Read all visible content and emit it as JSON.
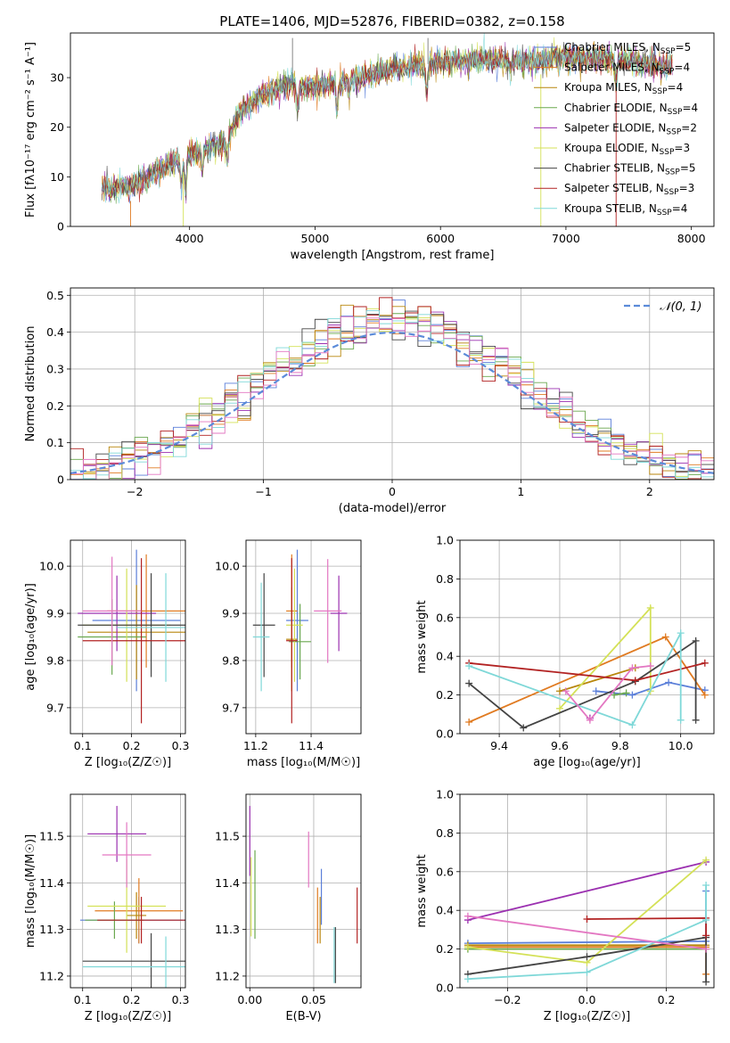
{
  "title": "PLATE=1406, MJD=52876, FIBERID=0382, z=0.158",
  "colors": {
    "Chabrier MILES": "#5b7fd9",
    "Salpeter MILES": "#e07b22",
    "Kroupa MILES": "#b8860b",
    "Chabrier ELODIE": "#6aa84f",
    "Salpeter ELODIE": "#9b30b0",
    "Kroupa ELODIE": "#d4e157",
    "Chabrier STELIB": "#444444",
    "Salpeter STELIB": "#b22222",
    "Kroupa STELIB": "#7fd8d8",
    "pink": "#e377c2",
    "normal": "#5b8bd9"
  },
  "chart_data": [
    {
      "id": "spectrum",
      "type": "line",
      "xlabel": "wavelength [Angstrom, rest frame]",
      "ylabel": "Flux [fλ10⁻¹⁷ erg cm⁻² s⁻¹ A⁻¹]",
      "xlim": [
        3050,
        8180
      ],
      "ylim": [
        0,
        39
      ],
      "xticks": [
        4000,
        5000,
        6000,
        7000,
        8000
      ],
      "yticks": [
        0,
        10,
        20,
        30
      ],
      "legend_position": "right",
      "legend": [
        {
          "label": "Chabrier MILES, N",
          "sub": "SSP",
          "suffix": "=5",
          "color_key": "Chabrier MILES"
        },
        {
          "label": "Salpeter MILES, N",
          "sub": "SSP",
          "suffix": "=4",
          "color_key": "Salpeter MILES"
        },
        {
          "label": "Kroupa MILES, N",
          "sub": "SSP",
          "suffix": "=4",
          "color_key": "Kroupa MILES"
        },
        {
          "label": "Chabrier ELODIE, N",
          "sub": "SSP",
          "suffix": "=4",
          "color_key": "Chabrier ELODIE"
        },
        {
          "label": "Salpeter ELODIE, N",
          "sub": "SSP",
          "suffix": "=2",
          "color_key": "Salpeter ELODIE"
        },
        {
          "label": "Kroupa ELODIE, N",
          "sub": "SSP",
          "suffix": "=3",
          "color_key": "Kroupa ELODIE"
        },
        {
          "label": "Chabrier STELIB, N",
          "sub": "SSP",
          "suffix": "=5",
          "color_key": "Chabrier STELIB"
        },
        {
          "label": "Salpeter STELIB, N",
          "sub": "SSP",
          "suffix": "=3",
          "color_key": "Salpeter STELIB"
        },
        {
          "label": "Kroupa STELIB, N",
          "sub": "SSP",
          "suffix": "=4",
          "color_key": "Kroupa STELIB"
        }
      ],
      "continuum": [
        [
          3300,
          7.5
        ],
        [
          3500,
          7.8
        ],
        [
          3650,
          9.5
        ],
        [
          3800,
          12
        ],
        [
          3950,
          14
        ],
        [
          4050,
          15
        ],
        [
          4200,
          16
        ],
        [
          4300,
          17.5
        ],
        [
          4400,
          23
        ],
        [
          4600,
          27
        ],
        [
          4800,
          28.5
        ],
        [
          5000,
          28.5
        ],
        [
          5200,
          29
        ],
        [
          5500,
          31
        ],
        [
          5800,
          32.5
        ],
        [
          6000,
          33
        ],
        [
          6300,
          33.5
        ],
        [
          6700,
          33.5
        ],
        [
          7000,
          34
        ],
        [
          7300,
          34
        ],
        [
          7600,
          33
        ],
        [
          7800,
          32
        ]
      ],
      "absorption_features": [
        [
          3934,
          -6
        ],
        [
          3968,
          -7
        ],
        [
          4102,
          -4
        ],
        [
          4300,
          -4
        ],
        [
          4861,
          -5
        ],
        [
          5175,
          -6
        ],
        [
          5270,
          -3
        ],
        [
          5890,
          -6
        ],
        [
          6563,
          -2
        ],
        [
          7400,
          -4
        ]
      ],
      "spike_lines": [
        [
          4820,
          38
        ],
        [
          5900,
          38
        ]
      ]
    },
    {
      "id": "residuals",
      "type": "histogram",
      "xlabel": "(data-model)/error",
      "ylabel": "Normed distribution",
      "xlim": [
        -2.5,
        2.5
      ],
      "ylim": [
        0,
        0.52
      ],
      "xticks": [
        -2,
        -1,
        0,
        1,
        2
      ],
      "yticks": [
        0,
        0.1,
        0.2,
        0.3,
        0.4,
        0.5
      ],
      "grid": true,
      "legend_position": "top-right",
      "normal_label": "𝒩(0, 1)",
      "bin_width": 0.1
    },
    {
      "id": "age-vs-Z",
      "type": "scatter",
      "xlabel": "Z [log₁₀(Z/Z☉)]",
      "ylabel": "age  [log₁₀(age/yr)]",
      "xlim": [
        0.075,
        0.31
      ],
      "ylim": [
        9.645,
        10.055
      ],
      "xticks": [
        0.1,
        0.2,
        0.3
      ],
      "yticks": [
        9.7,
        9.8,
        9.9,
        10.0
      ],
      "grid": true,
      "points": [
        {
          "series": "Chabrier MILES",
          "x": 0.21,
          "y": 9.885,
          "xerr": 0.09,
          "yerr": 0.15
        },
        {
          "series": "Salpeter MILES",
          "x": 0.23,
          "y": 9.905,
          "xerr": 0.08,
          "yerr": 0.12
        },
        {
          "series": "Kroupa MILES",
          "x": 0.21,
          "y": 9.86,
          "xerr": 0.1,
          "yerr": 0.1
        },
        {
          "series": "Chabrier ELODIE",
          "x": 0.16,
          "y": 9.85,
          "xerr": 0.07,
          "yerr": 0.08
        },
        {
          "series": "Salpeter ELODIE",
          "x": 0.17,
          "y": 9.9,
          "xerr": 0.08,
          "yerr": 0.08
        },
        {
          "series": "Kroupa ELODIE",
          "x": 0.19,
          "y": 9.875,
          "xerr": 0.09,
          "yerr": 0.12
        },
        {
          "series": "Chabrier STELIB",
          "x": 0.24,
          "y": 9.875,
          "xerr": 0.15,
          "yerr": 0.11
        },
        {
          "series": "Salpeter STELIB",
          "x": 0.22,
          "y": 9.842,
          "xerr": 0.12,
          "yerr": 0.175
        },
        {
          "series": "Kroupa STELIB",
          "x": 0.27,
          "y": 9.87,
          "xerr": 0.1,
          "yerr": 0.115
        },
        {
          "series": "pink",
          "x": 0.16,
          "y": 9.905,
          "xerr": 0.06,
          "yerr": 0.115
        }
      ]
    },
    {
      "id": "age-vs-mass",
      "type": "scatter",
      "xlabel": "mass [log₁₀(M/M☉)]",
      "ylabel": "",
      "xlim": [
        11.165,
        11.58
      ],
      "ylim": [
        9.645,
        10.055
      ],
      "xticks": [
        11.2,
        11.4
      ],
      "yticks": [
        9.7,
        9.8,
        9.9,
        10.0
      ],
      "grid": true,
      "points": [
        {
          "series": "Chabrier MILES",
          "x": 11.35,
          "y": 9.885,
          "xerr": 0.04,
          "yerr": 0.15
        },
        {
          "series": "Salpeter MILES",
          "x": 11.33,
          "y": 9.905,
          "xerr": 0.02,
          "yerr": 0.12
        },
        {
          "series": "Kroupa MILES",
          "x": 11.33,
          "y": 9.845,
          "xerr": 0.02,
          "yerr": 0.11
        },
        {
          "series": "Chabrier ELODIE",
          "x": 11.36,
          "y": 9.84,
          "xerr": 0.04,
          "yerr": 0.08
        },
        {
          "series": "Salpeter ELODIE",
          "x": 11.5,
          "y": 9.9,
          "xerr": 0.03,
          "yerr": 0.08
        },
        {
          "series": "Kroupa ELODIE",
          "x": 11.34,
          "y": 9.875,
          "xerr": 0.03,
          "yerr": 0.12
        },
        {
          "series": "Chabrier STELIB",
          "x": 11.23,
          "y": 9.875,
          "xerr": 0.04,
          "yerr": 0.11
        },
        {
          "series": "Salpeter STELIB",
          "x": 11.33,
          "y": 9.842,
          "xerr": 0.02,
          "yerr": 0.175
        },
        {
          "series": "Kroupa STELIB",
          "x": 11.22,
          "y": 9.85,
          "xerr": 0.03,
          "yerr": 0.115
        },
        {
          "series": "pink",
          "x": 11.46,
          "y": 9.905,
          "xerr": 0.05,
          "yerr": 0.11
        }
      ]
    },
    {
      "id": "massweight-vs-age",
      "type": "line",
      "xlabel": "age  [log₁₀(age/yr)]",
      "ylabel": "mass weight",
      "xlim": [
        9.27,
        10.11
      ],
      "ylim": [
        0,
        1.0
      ],
      "xticks": [
        9.4,
        9.6,
        9.8,
        10.0
      ],
      "yticks": [
        0,
        0.2,
        0.4,
        0.6,
        0.8,
        1.0
      ],
      "grid": true,
      "series": [
        {
          "name": "Chabrier MILES",
          "x": [
            9.72,
            9.84,
            9.96,
            10.08
          ],
          "y": [
            0.22,
            0.2,
            0.265,
            0.225
          ]
        },
        {
          "name": "Salpeter MILES",
          "x": [
            9.3,
            9.95,
            10.08
          ],
          "y": [
            0.06,
            0.5,
            0.2
          ]
        },
        {
          "name": "Kroupa MILES",
          "x": [
            9.6,
            9.85
          ],
          "y": [
            0.22,
            0.34
          ]
        },
        {
          "name": "Chabrier ELODIE",
          "x": [
            9.78,
            9.82
          ],
          "y": [
            0.2,
            0.21
          ]
        },
        {
          "name": "Salpeter ELODIE",
          "x": [
            9.7
          ],
          "y": [
            0.08
          ]
        },
        {
          "name": "Kroupa ELODIE",
          "x": [
            9.6,
            9.9,
            9.9
          ],
          "y": [
            0.13,
            0.65,
            0.22
          ]
        },
        {
          "name": "Chabrier STELIB",
          "x": [
            9.3,
            9.48,
            9.85,
            10.05,
            10.05
          ],
          "y": [
            0.26,
            0.03,
            0.27,
            0.48,
            0.07
          ]
        },
        {
          "name": "Salpeter STELIB",
          "x": [
            9.3,
            9.85,
            10.08
          ],
          "y": [
            0.365,
            0.275,
            0.365
          ]
        },
        {
          "name": "Kroupa STELIB",
          "x": [
            9.3,
            9.84,
            10.0,
            10.0
          ],
          "y": [
            0.35,
            0.045,
            0.52,
            0.07
          ]
        },
        {
          "name": "pink",
          "x": [
            9.62,
            9.7,
            9.84,
            9.9
          ],
          "y": [
            0.22,
            0.07,
            0.34,
            0.35
          ]
        }
      ]
    },
    {
      "id": "mass-vs-Z",
      "type": "scatter",
      "xlabel": "Z [log₁₀(Z/Z☉)]",
      "ylabel": "mass [log₁₀(M/M☉)]",
      "xlim": [
        0.075,
        0.31
      ],
      "ylim": [
        11.175,
        11.59
      ],
      "xticks": [
        0.1,
        0.2,
        0.3
      ],
      "yticks": [
        11.2,
        11.3,
        11.4,
        11.5
      ],
      "grid": true,
      "points": [
        {
          "series": "Chabrier MILES",
          "x": 0.215,
          "y": 11.32,
          "xerr": 0.12,
          "yerr": 0.05
        },
        {
          "series": "Salpeter MILES",
          "x": 0.215,
          "y": 11.34,
          "xerr": 0.09,
          "yerr": 0.07
        },
        {
          "series": "Kroupa MILES",
          "x": 0.21,
          "y": 11.33,
          "xerr": 0.02,
          "yerr": 0.05
        },
        {
          "series": "Chabrier ELODIE",
          "x": 0.165,
          "y": 11.32,
          "xerr": 0.06,
          "yerr": 0.04
        },
        {
          "series": "Salpeter ELODIE",
          "x": 0.17,
          "y": 11.505,
          "xerr": 0.06,
          "yerr": 0.06
        },
        {
          "series": "Kroupa ELODIE",
          "x": 0.19,
          "y": 11.35,
          "xerr": 0.08,
          "yerr": 0.1
        },
        {
          "series": "Chabrier STELIB",
          "x": 0.24,
          "y": 11.232,
          "xerr": 0.14,
          "yerr": 0.06
        },
        {
          "series": "Salpeter STELIB",
          "x": 0.22,
          "y": 11.32,
          "xerr": 0.09,
          "yerr": 0.05
        },
        {
          "series": "Kroupa STELIB",
          "x": 0.27,
          "y": 11.22,
          "xerr": 0.17,
          "yerr": 0.065
        },
        {
          "series": "pink",
          "x": 0.19,
          "y": 11.46,
          "xerr": 0.05,
          "yerr": 0.07
        }
      ]
    },
    {
      "id": "mass-vs-EBV",
      "type": "scatter",
      "xlabel": "E(B-V)",
      "ylabel": "",
      "xlim": [
        -0.003,
        0.087
      ],
      "ylim": [
        11.175,
        11.59
      ],
      "xticks": [
        0.0,
        0.05
      ],
      "yticks": [
        11.2,
        11.3,
        11.4,
        11.5
      ],
      "grid": true,
      "points": [
        {
          "series": "Chabrier MILES",
          "x": 0.056,
          "y": 11.37,
          "xerr": 0,
          "yerr": 0.06
        },
        {
          "series": "Salpeter MILES",
          "x": 0.053,
          "y": 11.33,
          "xerr": 0,
          "yerr": 0.06
        },
        {
          "series": "Kroupa MILES",
          "x": 0.055,
          "y": 11.32,
          "xerr": 0,
          "yerr": 0.05
        },
        {
          "series": "Chabrier ELODIE",
          "x": 0.004,
          "y": 11.375,
          "xerr": 0,
          "yerr": 0.095
        },
        {
          "series": "Salpeter ELODIE",
          "x": 0.0,
          "y": 11.49,
          "xerr": 0,
          "yerr": 0.075
        },
        {
          "series": "Kroupa ELODIE",
          "x": 0.001,
          "y": 11.37,
          "xerr": 0,
          "yerr": 0.085
        },
        {
          "series": "Chabrier STELIB",
          "x": 0.067,
          "y": 11.245,
          "xerr": 0,
          "yerr": 0.06
        },
        {
          "series": "Salpeter STELIB",
          "x": 0.084,
          "y": 11.33,
          "xerr": 0,
          "yerr": 0.06
        },
        {
          "series": "Kroupa STELIB",
          "x": 0.066,
          "y": 11.245,
          "xerr": 0,
          "yerr": 0.06
        },
        {
          "series": "pink",
          "x": 0.046,
          "y": 11.45,
          "xerr": 0,
          "yerr": 0.06
        }
      ]
    },
    {
      "id": "massweight-vs-Z",
      "type": "line",
      "xlabel": "Z [log₁₀(Z/Z☉)]",
      "ylabel": "mass weight",
      "xlim": [
        -0.32,
        0.32
      ],
      "ylim": [
        0,
        1.0
      ],
      "xticks": [
        -0.2,
        0.0,
        0.2
      ],
      "yticks": [
        0,
        0.2,
        0.4,
        0.6,
        0.8,
        1.0
      ],
      "grid": true,
      "series": [
        {
          "name": "Chabrier MILES",
          "x": [
            -0.3,
            0.3,
            0.3
          ],
          "y": [
            0.23,
            0.24,
            0.5
          ]
        },
        {
          "name": "Salpeter MILES",
          "x": [
            -0.3,
            0.3,
            0.3
          ],
          "y": [
            0.21,
            0.21,
            0.07
          ]
        },
        {
          "name": "Kroupa MILES",
          "x": [
            -0.3,
            0.3
          ],
          "y": [
            0.22,
            0.22
          ]
        },
        {
          "name": "Chabrier ELODIE",
          "x": [
            -0.3,
            0.3
          ],
          "y": [
            0.2,
            0.2
          ]
        },
        {
          "name": "Salpeter ELODIE",
          "x": [
            -0.3,
            0.3
          ],
          "y": [
            0.35,
            0.65
          ]
        },
        {
          "name": "Kroupa ELODIE",
          "x": [
            -0.3,
            0.0,
            0.3
          ],
          "y": [
            0.21,
            0.13,
            0.66
          ]
        },
        {
          "name": "Chabrier STELIB",
          "x": [
            -0.3,
            0.0,
            0.3,
            0.3
          ],
          "y": [
            0.07,
            0.16,
            0.26,
            0.03
          ]
        },
        {
          "name": "Salpeter STELIB",
          "x": [
            0.0,
            0.3,
            0.3
          ],
          "y": [
            0.355,
            0.36,
            0.27
          ]
        },
        {
          "name": "Kroupa STELIB",
          "x": [
            -0.3,
            0.0,
            0.3,
            0.3
          ],
          "y": [
            0.045,
            0.08,
            0.35,
            0.53
          ]
        },
        {
          "name": "pink",
          "x": [
            -0.3,
            0.3
          ],
          "y": [
            0.37,
            0.2
          ]
        }
      ]
    }
  ]
}
